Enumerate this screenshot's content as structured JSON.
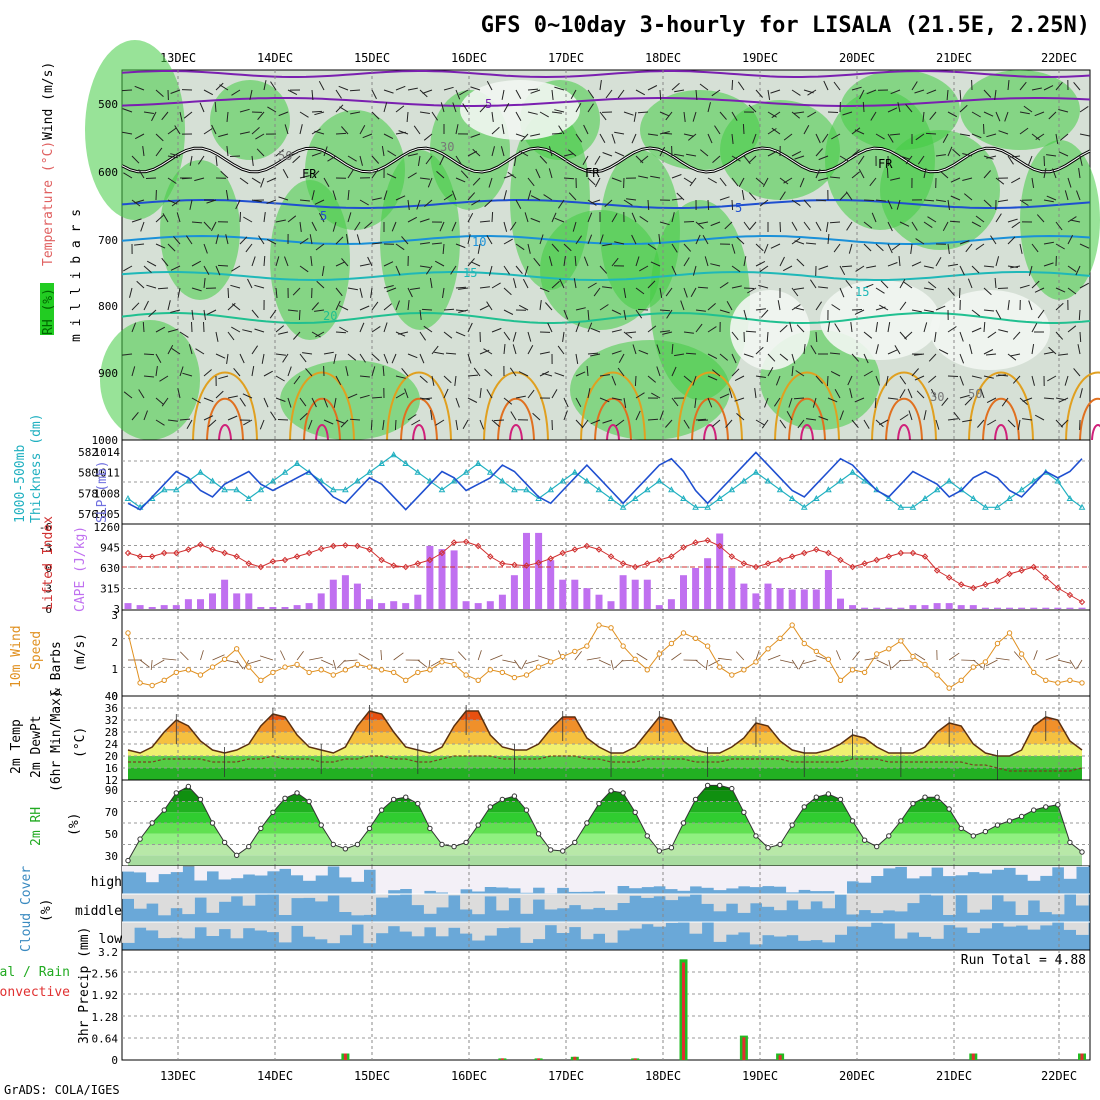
{
  "title": "GFS 0~10day 3-hourly for LISALA (21.5E, 2.25N)",
  "footer": "GrADS: COLA/IGES",
  "dates": [
    "13DEC",
    "14DEC",
    "15DEC",
    "16DEC",
    "17DEC",
    "18DEC",
    "19DEC",
    "20DEC",
    "21DEC",
    "22DEC"
  ],
  "colors": {
    "rh_green": "#22cc22",
    "temp_line": "#1f4fd0",
    "thick_line": "#20b0c0",
    "lifted": "#d03030",
    "cape": "#c070f0",
    "wind": "#e09020",
    "cloud": "#6aa8d8"
  },
  "panels": {
    "upper": {
      "label_rh": "RH (%)",
      "label_temp": "Temperature (°C)",
      "label_wind": "Wind (m/s)",
      "label_mb": "m i l l i b a r s",
      "ticks": [
        "500",
        "600",
        "700",
        "800",
        "900",
        "1000"
      ],
      "contour_labels": [
        "5",
        "5",
        "5",
        "10",
        "15",
        "15",
        "20",
        "FR",
        "FR",
        "FR",
        "30",
        "50",
        "50",
        "30",
        "50",
        "30"
      ]
    },
    "thickness": {
      "label_a": "1000-500mb",
      "label_b": "Thickness (dm)",
      "label_c": "SLP (mb)",
      "left_ticks": [
        "582",
        "580",
        "578",
        "576"
      ],
      "right_ticks": [
        "1014",
        "1011",
        "1008",
        "1005"
      ]
    },
    "cape": {
      "label_a": "Lifted Index",
      "label_b": "CAPE (J/kg)",
      "left_ticks": [
        "-6",
        "-3",
        "0",
        "3",
        "6"
      ],
      "right_ticks": [
        "1260",
        "945",
        "630",
        "315",
        "3"
      ]
    },
    "wind10": {
      "label_a": "10m Wind",
      "label_b": "Speed",
      "label_c": "& Barbs",
      "label_d": "(m/s)",
      "ticks": [
        "3",
        "2",
        "1",
        "0"
      ]
    },
    "temp2m": {
      "label_a": "2m Temp",
      "label_b": "2m DewPt",
      "label_c": "(6hr Min/Max)",
      "label_d": "(°C)",
      "ticks": [
        "40",
        "36",
        "32",
        "28",
        "24",
        "20",
        "16",
        "12"
      ]
    },
    "rh2m": {
      "label_a": "2m RH",
      "label_b": "(%)",
      "ticks": [
        "90",
        "70",
        "50",
        "30"
      ]
    },
    "cloud": {
      "label_a": "Cloud Cover",
      "label_b": "(%)",
      "levels": [
        "high",
        "middle",
        "low"
      ]
    },
    "precip": {
      "label_a": "Total / Rain",
      "label_b": "Convective",
      "label_c": "3hr Precip (mm)",
      "ticks": [
        "3.2",
        "2.56",
        "1.92",
        "1.28",
        "0.64",
        "0"
      ],
      "run_total": "Run Total = 4.88"
    }
  },
  "chart_data": [
    {
      "type": "line",
      "title": "1000-500mb Thickness (dm) / SLP (mb)",
      "series": [
        {
          "name": "Thickness (dm)",
          "values": [
            577,
            576,
            577,
            578,
            578,
            579,
            580,
            579,
            578,
            578,
            577,
            578,
            579,
            580,
            581,
            580,
            579,
            578,
            578,
            579,
            580,
            581,
            582,
            581,
            580,
            579,
            578,
            579,
            580,
            581,
            580,
            579,
            578,
            578,
            577,
            578,
            579,
            580,
            579,
            578,
            577,
            576,
            577,
            578,
            579,
            578,
            577,
            576,
            576,
            577,
            578,
            579,
            580,
            579,
            578,
            577,
            576,
            577,
            578,
            579,
            580,
            579,
            578,
            577,
            576,
            576,
            577,
            578,
            579,
            578,
            577,
            576,
            576,
            577,
            578,
            579,
            580,
            579,
            577,
            576
          ]
        },
        {
          "name": "SLP (mb)",
          "values": [
            1006,
            1005,
            1007,
            1009,
            1011,
            1010,
            1008,
            1007,
            1009,
            1010,
            1011,
            1009,
            1008,
            1009,
            1010,
            1011,
            1009,
            1007,
            1006,
            1008,
            1010,
            1009,
            1007,
            1005,
            1007,
            1009,
            1011,
            1010,
            1008,
            1009,
            1010,
            1012,
            1011,
            1009,
            1007,
            1006,
            1008,
            1010,
            1012,
            1010,
            1008,
            1006,
            1008,
            1010,
            1012,
            1013,
            1011,
            1008,
            1006,
            1008,
            1010,
            1012,
            1014,
            1012,
            1010,
            1008,
            1007,
            1009,
            1011,
            1013,
            1012,
            1010,
            1008,
            1007,
            1009,
            1011,
            1010,
            1009,
            1007,
            1008,
            1010,
            1011,
            1010,
            1008,
            1007,
            1009,
            1011,
            1010,
            1011,
            1013
          ]
        }
      ]
    },
    {
      "type": "bar",
      "title": "CAPE (J/kg) / Lifted Index",
      "series": [
        {
          "name": "CAPE (J/kg)",
          "values": [
            90,
            60,
            30,
            60,
            60,
            150,
            150,
            240,
            450,
            240,
            240,
            30,
            30,
            30,
            60,
            90,
            240,
            450,
            520,
            390,
            150,
            90,
            120,
            90,
            220,
            970,
            920,
            900,
            120,
            90,
            120,
            220,
            520,
            1170,
            1170,
            750,
            450,
            450,
            320,
            220,
            120,
            520,
            450,
            450,
            60,
            150,
            520,
            630,
            780,
            1160,
            630,
            390,
            240,
            390,
            320,
            300,
            300,
            300,
            600,
            160,
            60,
            20,
            20,
            20,
            20,
            60,
            60,
            90,
            90,
            60,
            60,
            20,
            20,
            20,
            20,
            20,
            20,
            20,
            20,
            20
          ]
        },
        {
          "name": "Lifted Index",
          "values": [
            -2,
            -1.5,
            -1.5,
            -2,
            -2,
            -2.5,
            -3.2,
            -2.5,
            -2,
            -1.5,
            -0.5,
            0,
            -0.8,
            -1,
            -1.5,
            -2,
            -2.6,
            -3,
            -3.1,
            -3,
            -2.5,
            -1,
            -0.2,
            0,
            -0.5,
            -1,
            -2,
            -3.5,
            -3.6,
            -3,
            -1.5,
            -0.5,
            -0.3,
            -0.2,
            -0.6,
            -1.2,
            -2,
            -2.5,
            -3,
            -2.5,
            -1.5,
            -0.5,
            0,
            -0.5,
            -1,
            -1.5,
            -2.8,
            -3.5,
            -3.8,
            -3,
            -1.5,
            -0.5,
            0,
            -0.5,
            -1,
            -1.5,
            -2,
            -2.5,
            -2,
            -1,
            0,
            -0.5,
            -1,
            -1.5,
            -2,
            -2,
            -1.5,
            0.5,
            1.5,
            2.5,
            3,
            2.5,
            2,
            1,
            0.5,
            0,
            1.5,
            3,
            4,
            5
          ]
        }
      ]
    },
    {
      "type": "line",
      "title": "10m Wind Speed (m/s)",
      "series": [
        {
          "name": "Speed",
          "values": [
            2.4,
            0.5,
            0.4,
            0.6,
            0.9,
            1.0,
            0.8,
            1.1,
            1.4,
            1.8,
            1.1,
            0.6,
            0.9,
            1.1,
            1.2,
            0.9,
            1.0,
            0.8,
            1.0,
            1.2,
            1.1,
            1.0,
            0.9,
            0.6,
            0.9,
            1.0,
            1.3,
            1.2,
            0.8,
            0.6,
            1.0,
            0.9,
            0.7,
            0.8,
            1.1,
            1.3,
            1.5,
            1.7,
            1.9,
            2.7,
            2.6,
            1.9,
            1.4,
            1.0,
            1.6,
            2.0,
            2.4,
            2.2,
            1.9,
            1.1,
            0.8,
            1.0,
            1.3,
            1.8,
            2.2,
            2.7,
            2.0,
            1.7,
            1.4,
            0.6,
            1.0,
            0.9,
            1.6,
            1.8,
            2.1,
            1.5,
            1.2,
            0.8,
            0.3,
            0.6,
            1.1,
            1.3,
            2.0,
            2.4,
            1.6,
            0.9,
            0.6,
            0.5,
            0.6,
            0.5
          ]
        }
      ]
    },
    {
      "type": "area",
      "title": "2m Temp / 2m DewPt (°C)",
      "series": [
        {
          "name": "2m Temp",
          "values": [
            22,
            21,
            23,
            28,
            32,
            30,
            25,
            22,
            21,
            22,
            24,
            30,
            34,
            33,
            27,
            23,
            22,
            21,
            23,
            30,
            35,
            34,
            28,
            23,
            22,
            21,
            23,
            30,
            35,
            35,
            27,
            23,
            22,
            22,
            24,
            29,
            33,
            33,
            26,
            23,
            21,
            21,
            23,
            28,
            33,
            32,
            25,
            22,
            21,
            21,
            23,
            26,
            31,
            30,
            25,
            22,
            21,
            21,
            22,
            24,
            27,
            26,
            23,
            21,
            21,
            21,
            23,
            28,
            31,
            30,
            24,
            21,
            20,
            20,
            22,
            30,
            33,
            32,
            25,
            22
          ]
        },
        {
          "name": "2m DewPt",
          "values": [
            18,
            18,
            18,
            19,
            19,
            19,
            19,
            18,
            18,
            18,
            19,
            19,
            20,
            19,
            19,
            19,
            18,
            18,
            19,
            19,
            20,
            20,
            19,
            19,
            18,
            18,
            19,
            20,
            20,
            20,
            20,
            19,
            19,
            19,
            19,
            20,
            20,
            20,
            19,
            19,
            18,
            18,
            18,
            19,
            19,
            19,
            19,
            18,
            18,
            18,
            19,
            19,
            19,
            19,
            19,
            18,
            18,
            18,
            18,
            18,
            19,
            19,
            19,
            18,
            18,
            18,
            18,
            18,
            18,
            18,
            17,
            17,
            16,
            15,
            15,
            15,
            15,
            15,
            15,
            16
          ]
        }
      ]
    },
    {
      "type": "area",
      "title": "2m RH (%)",
      "series": [
        {
          "name": "2m RH",
          "values": [
            25,
            45,
            60,
            72,
            88,
            94,
            82,
            60,
            42,
            30,
            38,
            55,
            70,
            83,
            88,
            80,
            58,
            40,
            36,
            40,
            55,
            72,
            82,
            84,
            78,
            55,
            40,
            38,
            42,
            58,
            75,
            82,
            85,
            72,
            50,
            35,
            34,
            42,
            60,
            78,
            90,
            88,
            70,
            48,
            34,
            37,
            60,
            82,
            95,
            95,
            92,
            70,
            48,
            37,
            40,
            58,
            75,
            84,
            87,
            82,
            62,
            44,
            38,
            48,
            62,
            78,
            84,
            84,
            73,
            55,
            48,
            52,
            58,
            62,
            66,
            72,
            75,
            77,
            42,
            33
          ]
        }
      ]
    },
    {
      "type": "bar",
      "title": "3hr Precip (mm)",
      "series": [
        {
          "name": "Total / Rain",
          "values": [
            0,
            0,
            0,
            0,
            0,
            0,
            0,
            0,
            0,
            0,
            0,
            0,
            0,
            0,
            0,
            0,
            0,
            0,
            0.2,
            0,
            0,
            0,
            0,
            0,
            0,
            0,
            0,
            0,
            0,
            0,
            0,
            0.05,
            0,
            0,
            0.05,
            0,
            0,
            0.1,
            0,
            0,
            0,
            0,
            0.05,
            0,
            0,
            0,
            3.1,
            0,
            0,
            0,
            0,
            0.75,
            0,
            0,
            0.2,
            0,
            0,
            0,
            0,
            0,
            0,
            0,
            0,
            0,
            0,
            0,
            0,
            0,
            0,
            0,
            0.2,
            0,
            0,
            0,
            0,
            0,
            0,
            0,
            0,
            0.2
          ]
        },
        {
          "name": "Convective",
          "values": [
            0,
            0,
            0,
            0,
            0,
            0,
            0,
            0,
            0,
            0,
            0,
            0,
            0,
            0,
            0,
            0,
            0,
            0,
            0.2,
            0,
            0,
            0,
            0,
            0,
            0,
            0,
            0,
            0,
            0,
            0,
            0,
            0.05,
            0,
            0,
            0.05,
            0,
            0,
            0.1,
            0,
            0,
            0,
            0,
            0.05,
            0,
            0,
            0,
            3.0,
            0,
            0,
            0,
            0,
            0.7,
            0,
            0,
            0.15,
            0,
            0,
            0,
            0,
            0,
            0,
            0,
            0,
            0,
            0,
            0,
            0,
            0,
            0,
            0,
            0.2,
            0,
            0,
            0,
            0,
            0,
            0,
            0,
            0,
            0.2
          ]
        }
      ]
    }
  ]
}
